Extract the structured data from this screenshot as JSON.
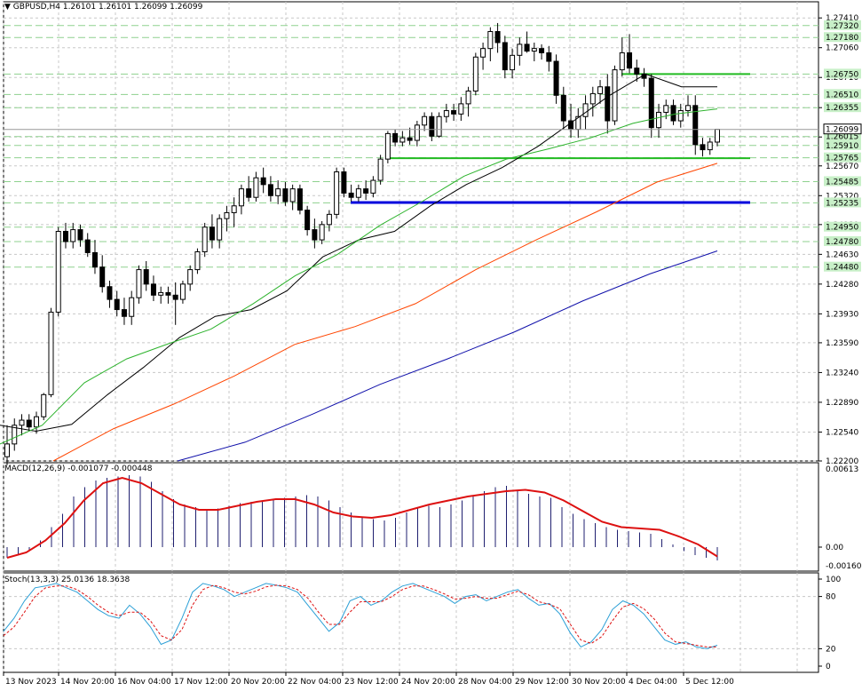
{
  "header": {
    "symbol_tf": "GBPUSD,H4",
    "ohlc": [
      "1.26101",
      "1.26101",
      "1.26099",
      "1.26099"
    ]
  },
  "colors": {
    "bull_fill": "#ffffff",
    "bear_fill": "#000000",
    "ma_black": "#000000",
    "ma_green": "#2db32d",
    "ma_orange": "#ff4500",
    "ma_blue": "#1010aa",
    "hline_green": "#22bb22",
    "hline_blue": "#0000dd",
    "grid_green": "#8fd18f",
    "grid_gray": "#c8c8c8",
    "macd_hist": "#1f1f6f",
    "macd_signal": "#dd1111",
    "stoch_main": "#2a9fd6",
    "stoch_signal": "#dd1111",
    "price_tag_bg": "#ffffff",
    "level_tag_bg": "#c8f0c8"
  },
  "price_axis": {
    "ticks": [
      "1.27410",
      "1.27060",
      "1.26710",
      "1.26355",
      "1.26010",
      "1.25670",
      "1.25320",
      "1.24980",
      "1.24630",
      "1.24280",
      "1.23930",
      "1.23590",
      "1.23240",
      "1.22890",
      "1.22540",
      "1.22200"
    ],
    "level_tags": [
      "1.27320",
      "1.27180",
      "1.26750",
      "1.26510",
      "1.26355",
      "1.26015",
      "1.25910",
      "1.25765",
      "1.25485",
      "1.25235",
      "1.24950",
      "1.24780",
      "1.24480"
    ],
    "current_price": "1.26099"
  },
  "macd": {
    "label": "MACD(12,26,9)",
    "values_text": "-0.001077 -0.000448",
    "axis": [
      "0.00613",
      "0.00",
      "-0.001606"
    ]
  },
  "stoch": {
    "label": "Stoch(13,3,3)",
    "values_text": "25.0136 18.3638",
    "axis": [
      "100",
      "80",
      "20",
      "0"
    ]
  },
  "time_axis": [
    "13 Nov 2023",
    "14 Nov 20:00",
    "16 Nov 04:00",
    "17 Nov 12:00",
    "20 Nov 20:00",
    "22 Nov 04:00",
    "23 Nov 12:00",
    "24 Nov 20:00",
    "28 Nov 04:00",
    "29 Nov 12:00",
    "30 Nov 20:00",
    "4 Dec 04:00",
    "5 Dec 12:00"
  ],
  "chart_data": {
    "type": "candlestick",
    "symbol": "GBPUSD",
    "timeframe": "H4",
    "y_range": [
      1.222,
      1.276
    ],
    "horizontal_lines": [
      {
        "color": "green",
        "value": 1.2675
      },
      {
        "color": "green",
        "value": 1.2576
      },
      {
        "color": "blue",
        "value": 1.2524
      }
    ],
    "candles_ohlc": [
      [
        1.2225,
        1.2262,
        1.2215,
        1.224
      ],
      [
        1.224,
        1.227,
        1.2232,
        1.2262
      ],
      [
        1.2262,
        1.2275,
        1.225,
        1.2268
      ],
      [
        1.2268,
        1.2275,
        1.2255,
        1.226
      ],
      [
        1.226,
        1.2278,
        1.2252,
        1.2272
      ],
      [
        1.2272,
        1.23,
        1.2268,
        1.2298
      ],
      [
        1.2298,
        1.24,
        1.2295,
        1.2395
      ],
      [
        1.2395,
        1.2495,
        1.239,
        1.249
      ],
      [
        1.249,
        1.25,
        1.247,
        1.2478
      ],
      [
        1.2478,
        1.25,
        1.247,
        1.2492
      ],
      [
        1.2492,
        1.2498,
        1.2472,
        1.248
      ],
      [
        1.248,
        1.2488,
        1.246,
        1.2465
      ],
      [
        1.2465,
        1.248,
        1.244,
        1.2448
      ],
      [
        1.2448,
        1.2462,
        1.2418,
        1.2425
      ],
      [
        1.2425,
        1.2432,
        1.24,
        1.241
      ],
      [
        1.241,
        1.242,
        1.239,
        1.2398
      ],
      [
        1.2398,
        1.2412,
        1.238,
        1.239
      ],
      [
        1.239,
        1.242,
        1.238,
        1.2412
      ],
      [
        1.2412,
        1.245,
        1.2405,
        1.2445
      ],
      [
        1.2445,
        1.2455,
        1.242,
        1.2428
      ],
      [
        1.2428,
        1.2438,
        1.2408,
        1.2415
      ],
      [
        1.2415,
        1.2425,
        1.2405,
        1.2418
      ],
      [
        1.2418,
        1.2425,
        1.2405,
        1.2415
      ],
      [
        1.2415,
        1.243,
        1.238,
        1.241
      ],
      [
        1.241,
        1.2432,
        1.2405,
        1.2428
      ],
      [
        1.2428,
        1.245,
        1.242,
        1.2445
      ],
      [
        1.2445,
        1.247,
        1.244,
        1.2466
      ],
      [
        1.2466,
        1.25,
        1.246,
        1.2495
      ],
      [
        1.2495,
        1.251,
        1.247,
        1.248
      ],
      [
        1.248,
        1.251,
        1.247,
        1.2505
      ],
      [
        1.2505,
        1.252,
        1.249,
        1.2512
      ],
      [
        1.2512,
        1.253,
        1.2495,
        1.252
      ],
      [
        1.252,
        1.2545,
        1.251,
        1.254
      ],
      [
        1.254,
        1.2555,
        1.2525,
        1.253
      ],
      [
        1.253,
        1.256,
        1.2525,
        1.2553
      ],
      [
        1.2553,
        1.2565,
        1.2535,
        1.2545
      ],
      [
        1.2545,
        1.2555,
        1.2525,
        1.2532
      ],
      [
        1.2532,
        1.255,
        1.2522,
        1.254
      ],
      [
        1.254,
        1.2548,
        1.252,
        1.2525
      ],
      [
        1.2525,
        1.2545,
        1.2515,
        1.254
      ],
      [
        1.254,
        1.2545,
        1.251,
        1.2515
      ],
      [
        1.2515,
        1.252,
        1.2485,
        1.2492
      ],
      [
        1.2492,
        1.2505,
        1.247,
        1.248
      ],
      [
        1.248,
        1.2502,
        1.2475,
        1.2498
      ],
      [
        1.2498,
        1.2515,
        1.249,
        1.251
      ],
      [
        1.251,
        1.2565,
        1.2505,
        1.256
      ],
      [
        1.256,
        1.2565,
        1.253,
        1.2535
      ],
      [
        1.2535,
        1.2545,
        1.2525,
        1.253
      ],
      [
        1.253,
        1.2545,
        1.2525,
        1.254
      ],
      [
        1.254,
        1.255,
        1.2527,
        1.2535
      ],
      [
        1.2535,
        1.2555,
        1.253,
        1.255
      ],
      [
        1.255,
        1.258,
        1.2545,
        1.2575
      ],
      [
        1.2575,
        1.2608,
        1.257,
        1.2605
      ],
      [
        1.2605,
        1.261,
        1.259,
        1.2595
      ],
      [
        1.2595,
        1.2608,
        1.259,
        1.26
      ],
      [
        1.26,
        1.2612,
        1.2592,
        1.2597
      ],
      [
        1.2597,
        1.262,
        1.259,
        1.2615
      ],
      [
        1.2615,
        1.263,
        1.2608,
        1.2625
      ],
      [
        1.2625,
        1.263,
        1.2596,
        1.2602
      ],
      [
        1.2602,
        1.263,
        1.26,
        1.2625
      ],
      [
        1.2625,
        1.264,
        1.2618,
        1.2632
      ],
      [
        1.2632,
        1.264,
        1.262,
        1.2628
      ],
      [
        1.2628,
        1.2648,
        1.262,
        1.264
      ],
      [
        1.264,
        1.266,
        1.2625,
        1.2655
      ],
      [
        1.2655,
        1.27,
        1.265,
        1.2695
      ],
      [
        1.2695,
        1.2712,
        1.268,
        1.2705
      ],
      [
        1.2705,
        1.273,
        1.269,
        1.2725
      ],
      [
        1.2725,
        1.2735,
        1.27,
        1.2712
      ],
      [
        1.2712,
        1.272,
        1.267,
        1.268
      ],
      [
        1.268,
        1.2705,
        1.267,
        1.2697
      ],
      [
        1.2697,
        1.2718,
        1.2685,
        1.271
      ],
      [
        1.271,
        1.2725,
        1.27,
        1.2702
      ],
      [
        1.2702,
        1.2712,
        1.269,
        1.2705
      ],
      [
        1.2705,
        1.271,
        1.2692,
        1.27
      ],
      [
        1.27,
        1.2708,
        1.2678,
        1.269
      ],
      [
        1.269,
        1.2698,
        1.264,
        1.265
      ],
      [
        1.265,
        1.266,
        1.261,
        1.262
      ],
      [
        1.262,
        1.264,
        1.26,
        1.261
      ],
      [
        1.261,
        1.2635,
        1.26,
        1.2625
      ],
      [
        1.2625,
        1.265,
        1.261,
        1.264
      ],
      [
        1.264,
        1.266,
        1.2625,
        1.2652
      ],
      [
        1.2652,
        1.2668,
        1.264,
        1.266
      ],
      [
        1.266,
        1.2675,
        1.2605,
        1.262
      ],
      [
        1.262,
        1.2685,
        1.2615,
        1.268
      ],
      [
        1.268,
        1.2718,
        1.2672,
        1.27
      ],
      [
        1.27,
        1.2722,
        1.2676,
        1.2682
      ],
      [
        1.2682,
        1.2692,
        1.2666,
        1.2675
      ],
      [
        1.2675,
        1.2682,
        1.266,
        1.267
      ],
      [
        1.267,
        1.2675,
        1.26,
        1.2612
      ],
      [
        1.2612,
        1.264,
        1.26,
        1.263
      ],
      [
        1.263,
        1.2645,
        1.2622,
        1.2638
      ],
      [
        1.2638,
        1.2645,
        1.2615,
        1.262
      ],
      [
        1.262,
        1.264,
        1.2612,
        1.2632
      ],
      [
        1.2632,
        1.265,
        1.2625,
        1.2638
      ],
      [
        1.2638,
        1.265,
        1.258,
        1.2592
      ],
      [
        1.2592,
        1.26,
        1.2578,
        1.2586
      ],
      [
        1.2586,
        1.26,
        1.258,
        1.2595
      ],
      [
        1.2595,
        1.261,
        1.259,
        1.261
      ]
    ],
    "moving_averages": [
      {
        "color": "black",
        "values": [
          1.2262,
          1.2255,
          1.2263,
          1.2298,
          1.233,
          1.2365,
          1.239,
          1.2398,
          1.242,
          1.246,
          1.248,
          1.249,
          1.252,
          1.2545,
          1.2565,
          1.259,
          1.262,
          1.265,
          1.2675,
          1.266,
          1.266
        ]
      },
      {
        "color": "green",
        "values": [
          1.224,
          1.2262,
          1.2312,
          1.234,
          1.2358,
          1.2375,
          1.2405,
          1.2438,
          1.2463,
          1.2497,
          1.2525,
          1.2555,
          1.2575,
          1.2587,
          1.26,
          1.2617,
          1.2628,
          1.2634
        ]
      },
      {
        "color": "orange",
        "values": [
          1.222,
          1.2258,
          1.2287,
          1.232,
          1.2357,
          1.2378,
          1.2405,
          1.2445,
          1.248,
          1.2513,
          1.2548,
          1.257
        ]
      },
      {
        "color": "blue",
        "values": [
          1.222,
          1.2242,
          1.2275,
          1.231,
          1.234,
          1.2372,
          1.2408,
          1.244,
          1.2467
        ]
      }
    ]
  }
}
